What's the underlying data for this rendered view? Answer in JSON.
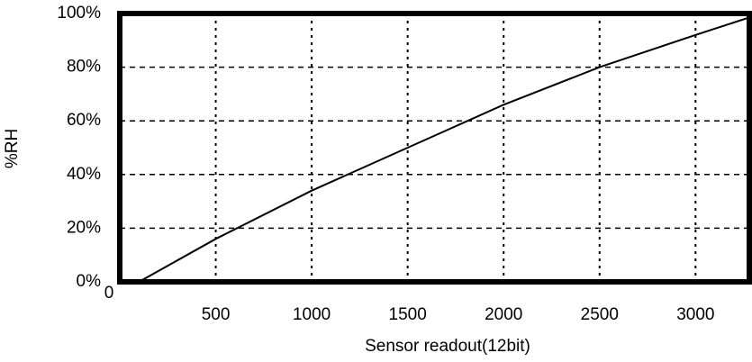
{
  "chart_data": {
    "type": "line",
    "x_label": "Sensor readout(12bit)",
    "y_label": "%RH",
    "x": [
      100,
      500,
      1000,
      1500,
      2000,
      2500,
      3000,
      3300
    ],
    "series": [
      {
        "name": "%RH",
        "color": "#000000",
        "values": [
          0,
          16,
          34,
          50,
          66,
          80,
          92,
          99
        ]
      }
    ],
    "xlim": [
      0,
      3280
    ],
    "xticks": [
      0,
      500,
      1000,
      1500,
      2000,
      2500,
      3000
    ],
    "ylim": [
      0,
      100
    ],
    "yticks": [
      {
        "value": 0,
        "label": "0%"
      },
      {
        "value": 20,
        "label": "20%"
      },
      {
        "value": 40,
        "label": "40%"
      },
      {
        "value": 60,
        "label": "60%"
      },
      {
        "value": 80,
        "label": "80%"
      },
      {
        "value": 100,
        "label": "100%"
      }
    ],
    "grid": true
  }
}
